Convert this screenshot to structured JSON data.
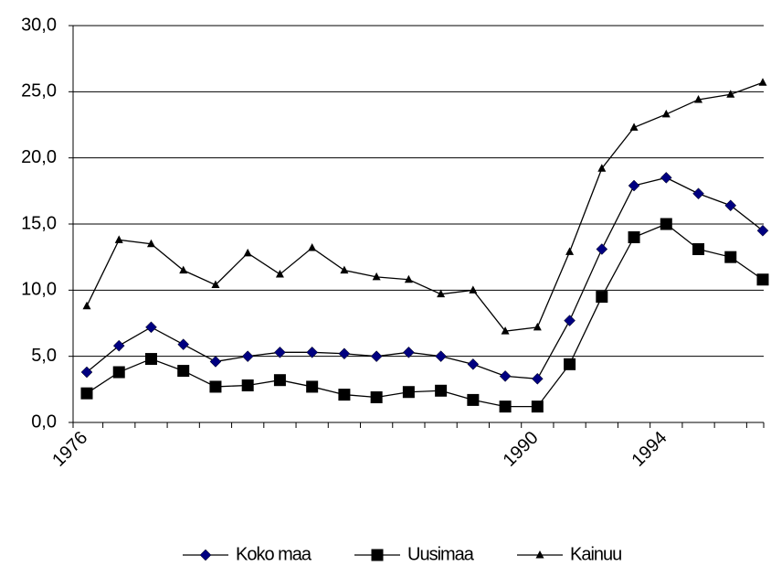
{
  "chart_data": {
    "type": "line",
    "categories": [
      "1976",
      null,
      null,
      null,
      null,
      null,
      null,
      null,
      null,
      null,
      null,
      null,
      null,
      null,
      "1990",
      null,
      null,
      null,
      "1994",
      null,
      null,
      null
    ],
    "series": [
      {
        "name": "Koko maa",
        "color": "#000080",
        "marker": "diamond",
        "values": [
          3.8,
          5.8,
          7.2,
          5.9,
          4.6,
          5.0,
          5.3,
          5.3,
          5.2,
          5.0,
          5.3,
          5.0,
          4.4,
          3.5,
          3.3,
          7.7,
          13.1,
          17.9,
          18.5,
          17.3,
          16.4,
          14.5
        ]
      },
      {
        "name": "Uusimaa",
        "color": "#000000",
        "marker": "square",
        "values": [
          2.2,
          3.8,
          4.8,
          3.9,
          2.7,
          2.8,
          3.2,
          2.7,
          2.1,
          1.9,
          2.3,
          2.4,
          1.7,
          1.2,
          1.2,
          4.4,
          9.5,
          14.0,
          15.0,
          13.1,
          12.5,
          10.8
        ]
      },
      {
        "name": "Kainuu",
        "color": "#000000",
        "marker": "triangle",
        "values": [
          8.8,
          13.8,
          13.5,
          11.5,
          10.4,
          12.8,
          11.2,
          13.2,
          11.5,
          11.0,
          10.8,
          9.7,
          10.0,
          6.9,
          7.2,
          12.9,
          19.2,
          22.3,
          23.3,
          24.4,
          24.8,
          25.7
        ]
      }
    ],
    "line_color": "#000000",
    "ylim": [
      0,
      30
    ],
    "yticks": [
      {
        "value": 0,
        "label": "0,0"
      },
      {
        "value": 5,
        "label": "5,0"
      },
      {
        "value": 10,
        "label": "10,0"
      },
      {
        "value": 15,
        "label": "15,0"
      },
      {
        "value": 20,
        "label": "20,0"
      },
      {
        "value": 25,
        "label": "25,0"
      },
      {
        "value": 30,
        "label": "30,0"
      }
    ],
    "grid": true,
    "legend": "bottom"
  }
}
